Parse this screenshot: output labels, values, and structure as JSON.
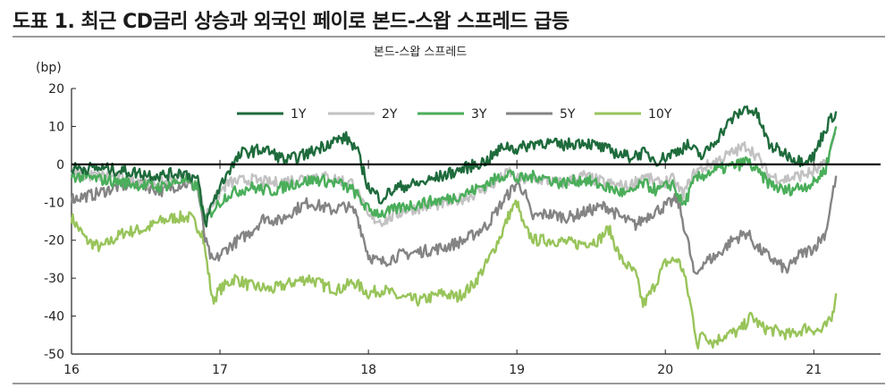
{
  "figure": {
    "title": "도표 1. 최근 CD금리 상승과 외국인 페이로 본드-스왑 스프레드 급등"
  },
  "chart_data": {
    "type": "line",
    "subtitle": "본드-스왑 스프레드",
    "ylabel": "(bp)",
    "ylim": [
      -50,
      20
    ],
    "yticks": [
      20,
      10,
      0,
      -10,
      -20,
      -30,
      -40,
      -50
    ],
    "ytick_labels": [
      "20",
      "10",
      "0",
      "-10",
      "-20",
      "-30",
      "-40",
      "-50"
    ],
    "xlim": [
      2016.0,
      2021.45
    ],
    "xticks": [
      2016,
      2017,
      2018,
      2019,
      2020,
      2021
    ],
    "xtick_labels": [
      "16",
      "17",
      "18",
      "19",
      "20",
      "21"
    ],
    "legend_position": "top-center",
    "zero_line": true,
    "series": [
      {
        "name": "1Y",
        "color": "#1e6b3c",
        "points": [
          [
            2016.0,
            -1
          ],
          [
            2016.2,
            -1
          ],
          [
            2016.4,
            -2
          ],
          [
            2016.6,
            -3
          ],
          [
            2016.75,
            -2
          ],
          [
            2016.85,
            -4
          ],
          [
            2016.9,
            -16
          ],
          [
            2016.95,
            -10
          ],
          [
            2017.05,
            -2
          ],
          [
            2017.15,
            3
          ],
          [
            2017.3,
            4
          ],
          [
            2017.45,
            1
          ],
          [
            2017.6,
            3
          ],
          [
            2017.75,
            6
          ],
          [
            2017.85,
            7
          ],
          [
            2017.92,
            4
          ],
          [
            2018.0,
            -6
          ],
          [
            2018.08,
            -9
          ],
          [
            2018.2,
            -6
          ],
          [
            2018.35,
            -5
          ],
          [
            2018.5,
            -3
          ],
          [
            2018.65,
            -1
          ],
          [
            2018.8,
            1
          ],
          [
            2018.92,
            5
          ],
          [
            2019.0,
            4
          ],
          [
            2019.15,
            6
          ],
          [
            2019.3,
            5
          ],
          [
            2019.45,
            6
          ],
          [
            2019.6,
            4
          ],
          [
            2019.75,
            2
          ],
          [
            2019.85,
            3
          ],
          [
            2019.95,
            1
          ],
          [
            2020.05,
            3
          ],
          [
            2020.15,
            5
          ],
          [
            2020.25,
            2
          ],
          [
            2020.35,
            7
          ],
          [
            2020.45,
            12
          ],
          [
            2020.55,
            15
          ],
          [
            2020.62,
            13
          ],
          [
            2020.7,
            5
          ],
          [
            2020.8,
            3
          ],
          [
            2020.9,
            1
          ],
          [
            2021.0,
            2
          ],
          [
            2021.05,
            7
          ],
          [
            2021.1,
            11
          ],
          [
            2021.15,
            14
          ]
        ]
      },
      {
        "name": "2Y",
        "color": "#c2c2c2",
        "points": [
          [
            2016.0,
            -3
          ],
          [
            2016.2,
            -3
          ],
          [
            2016.4,
            -4
          ],
          [
            2016.6,
            -5
          ],
          [
            2016.75,
            -3
          ],
          [
            2016.85,
            -5
          ],
          [
            2016.9,
            -14
          ],
          [
            2016.95,
            -10
          ],
          [
            2017.05,
            -5
          ],
          [
            2017.2,
            -4
          ],
          [
            2017.35,
            -5
          ],
          [
            2017.5,
            -4
          ],
          [
            2017.65,
            -3
          ],
          [
            2017.8,
            -4
          ],
          [
            2017.9,
            -5
          ],
          [
            2018.0,
            -14
          ],
          [
            2018.1,
            -15
          ],
          [
            2018.25,
            -12
          ],
          [
            2018.4,
            -11
          ],
          [
            2018.55,
            -10
          ],
          [
            2018.7,
            -8
          ],
          [
            2018.85,
            -5
          ],
          [
            2018.95,
            -2
          ],
          [
            2019.0,
            -4
          ],
          [
            2019.15,
            -4
          ],
          [
            2019.3,
            -5
          ],
          [
            2019.45,
            -3
          ],
          [
            2019.6,
            -5
          ],
          [
            2019.75,
            -6
          ],
          [
            2019.85,
            -3
          ],
          [
            2019.95,
            -5
          ],
          [
            2020.05,
            -4
          ],
          [
            2020.12,
            -8
          ],
          [
            2020.2,
            -2
          ],
          [
            2020.3,
            0
          ],
          [
            2020.4,
            2
          ],
          [
            2020.5,
            4
          ],
          [
            2020.55,
            5
          ],
          [
            2020.62,
            2
          ],
          [
            2020.7,
            -3
          ],
          [
            2020.8,
            -4
          ],
          [
            2020.9,
            -3
          ],
          [
            2021.0,
            -2
          ],
          [
            2021.08,
            0
          ],
          [
            2021.15,
            8
          ]
        ]
      },
      {
        "name": "3Y",
        "color": "#4aae5a",
        "points": [
          [
            2016.0,
            -3
          ],
          [
            2016.2,
            -4
          ],
          [
            2016.4,
            -5
          ],
          [
            2016.6,
            -6
          ],
          [
            2016.75,
            -4
          ],
          [
            2016.85,
            -6
          ],
          [
            2016.9,
            -15
          ],
          [
            2016.95,
            -12
          ],
          [
            2017.05,
            -8
          ],
          [
            2017.2,
            -6
          ],
          [
            2017.35,
            -7
          ],
          [
            2017.5,
            -5
          ],
          [
            2017.65,
            -4
          ],
          [
            2017.8,
            -5
          ],
          [
            2017.9,
            -7
          ],
          [
            2018.0,
            -12
          ],
          [
            2018.1,
            -13
          ],
          [
            2018.25,
            -11
          ],
          [
            2018.4,
            -10
          ],
          [
            2018.55,
            -9
          ],
          [
            2018.7,
            -7
          ],
          [
            2018.85,
            -4
          ],
          [
            2018.95,
            -2
          ],
          [
            2019.0,
            -4
          ],
          [
            2019.15,
            -3
          ],
          [
            2019.3,
            -5
          ],
          [
            2019.45,
            -4
          ],
          [
            2019.6,
            -6
          ],
          [
            2019.75,
            -8
          ],
          [
            2019.85,
            -5
          ],
          [
            2019.95,
            -7
          ],
          [
            2020.05,
            -5
          ],
          [
            2020.12,
            -11
          ],
          [
            2020.2,
            -4
          ],
          [
            2020.3,
            -2
          ],
          [
            2020.4,
            -1
          ],
          [
            2020.5,
            0
          ],
          [
            2020.55,
            1
          ],
          [
            2020.62,
            -2
          ],
          [
            2020.7,
            -5
          ],
          [
            2020.8,
            -7
          ],
          [
            2020.9,
            -6
          ],
          [
            2021.0,
            -5
          ],
          [
            2021.08,
            -1
          ],
          [
            2021.15,
            10
          ]
        ]
      },
      {
        "name": "5Y",
        "color": "#848484",
        "points": [
          [
            2016.0,
            -9
          ],
          [
            2016.15,
            -8
          ],
          [
            2016.3,
            -6
          ],
          [
            2016.45,
            -5
          ],
          [
            2016.6,
            -7
          ],
          [
            2016.75,
            -5
          ],
          [
            2016.85,
            -6
          ],
          [
            2016.9,
            -20
          ],
          [
            2016.95,
            -26
          ],
          [
            2017.05,
            -22
          ],
          [
            2017.2,
            -18
          ],
          [
            2017.3,
            -14
          ],
          [
            2017.4,
            -15
          ],
          [
            2017.5,
            -12
          ],
          [
            2017.6,
            -10
          ],
          [
            2017.75,
            -12
          ],
          [
            2017.85,
            -11
          ],
          [
            2017.92,
            -13
          ],
          [
            2018.0,
            -24
          ],
          [
            2018.08,
            -26
          ],
          [
            2018.2,
            -24
          ],
          [
            2018.35,
            -23
          ],
          [
            2018.5,
            -22
          ],
          [
            2018.65,
            -20
          ],
          [
            2018.8,
            -16
          ],
          [
            2018.92,
            -9
          ],
          [
            2019.0,
            -5
          ],
          [
            2019.05,
            -7
          ],
          [
            2019.1,
            -14
          ],
          [
            2019.2,
            -13
          ],
          [
            2019.35,
            -14
          ],
          [
            2019.5,
            -12
          ],
          [
            2019.6,
            -11
          ],
          [
            2019.7,
            -14
          ],
          [
            2019.8,
            -16
          ],
          [
            2019.9,
            -13
          ],
          [
            2020.0,
            -11
          ],
          [
            2020.08,
            -9
          ],
          [
            2020.15,
            -20
          ],
          [
            2020.2,
            -30
          ],
          [
            2020.25,
            -26
          ],
          [
            2020.35,
            -24
          ],
          [
            2020.45,
            -20
          ],
          [
            2020.55,
            -18
          ],
          [
            2020.62,
            -22
          ],
          [
            2020.72,
            -25
          ],
          [
            2020.82,
            -28
          ],
          [
            2020.9,
            -24
          ],
          [
            2021.0,
            -22
          ],
          [
            2021.08,
            -18
          ],
          [
            2021.15,
            -3
          ]
        ]
      },
      {
        "name": "10Y",
        "color": "#98c45a",
        "points": [
          [
            2016.0,
            -14
          ],
          [
            2016.1,
            -20
          ],
          [
            2016.2,
            -22
          ],
          [
            2016.35,
            -18
          ],
          [
            2016.5,
            -17
          ],
          [
            2016.6,
            -15
          ],
          [
            2016.7,
            -14
          ],
          [
            2016.8,
            -14
          ],
          [
            2016.88,
            -18
          ],
          [
            2016.92,
            -28
          ],
          [
            2016.95,
            -36
          ],
          [
            2017.0,
            -33
          ],
          [
            2017.1,
            -30
          ],
          [
            2017.2,
            -32
          ],
          [
            2017.35,
            -33
          ],
          [
            2017.5,
            -31
          ],
          [
            2017.6,
            -30
          ],
          [
            2017.7,
            -32
          ],
          [
            2017.8,
            -33
          ],
          [
            2017.9,
            -31
          ],
          [
            2018.0,
            -34
          ],
          [
            2018.1,
            -33
          ],
          [
            2018.2,
            -35
          ],
          [
            2018.35,
            -36
          ],
          [
            2018.5,
            -34
          ],
          [
            2018.6,
            -35
          ],
          [
            2018.7,
            -32
          ],
          [
            2018.8,
            -26
          ],
          [
            2018.9,
            -18
          ],
          [
            2018.95,
            -13
          ],
          [
            2019.0,
            -10
          ],
          [
            2019.05,
            -17
          ],
          [
            2019.12,
            -20
          ],
          [
            2019.25,
            -20
          ],
          [
            2019.4,
            -21
          ],
          [
            2019.55,
            -20
          ],
          [
            2019.62,
            -17
          ],
          [
            2019.7,
            -25
          ],
          [
            2019.8,
            -29
          ],
          [
            2019.85,
            -37
          ],
          [
            2019.9,
            -34
          ],
          [
            2019.95,
            -30
          ],
          [
            2020.0,
            -26
          ],
          [
            2020.08,
            -25
          ],
          [
            2020.12,
            -28
          ],
          [
            2020.17,
            -37
          ],
          [
            2020.22,
            -48
          ],
          [
            2020.25,
            -44
          ],
          [
            2020.32,
            -47
          ],
          [
            2020.4,
            -45
          ],
          [
            2020.5,
            -44
          ],
          [
            2020.58,
            -40
          ],
          [
            2020.65,
            -43
          ],
          [
            2020.75,
            -44
          ],
          [
            2020.85,
            -45
          ],
          [
            2020.95,
            -43
          ],
          [
            2021.05,
            -44
          ],
          [
            2021.12,
            -41
          ],
          [
            2021.15,
            -34
          ]
        ]
      }
    ]
  }
}
